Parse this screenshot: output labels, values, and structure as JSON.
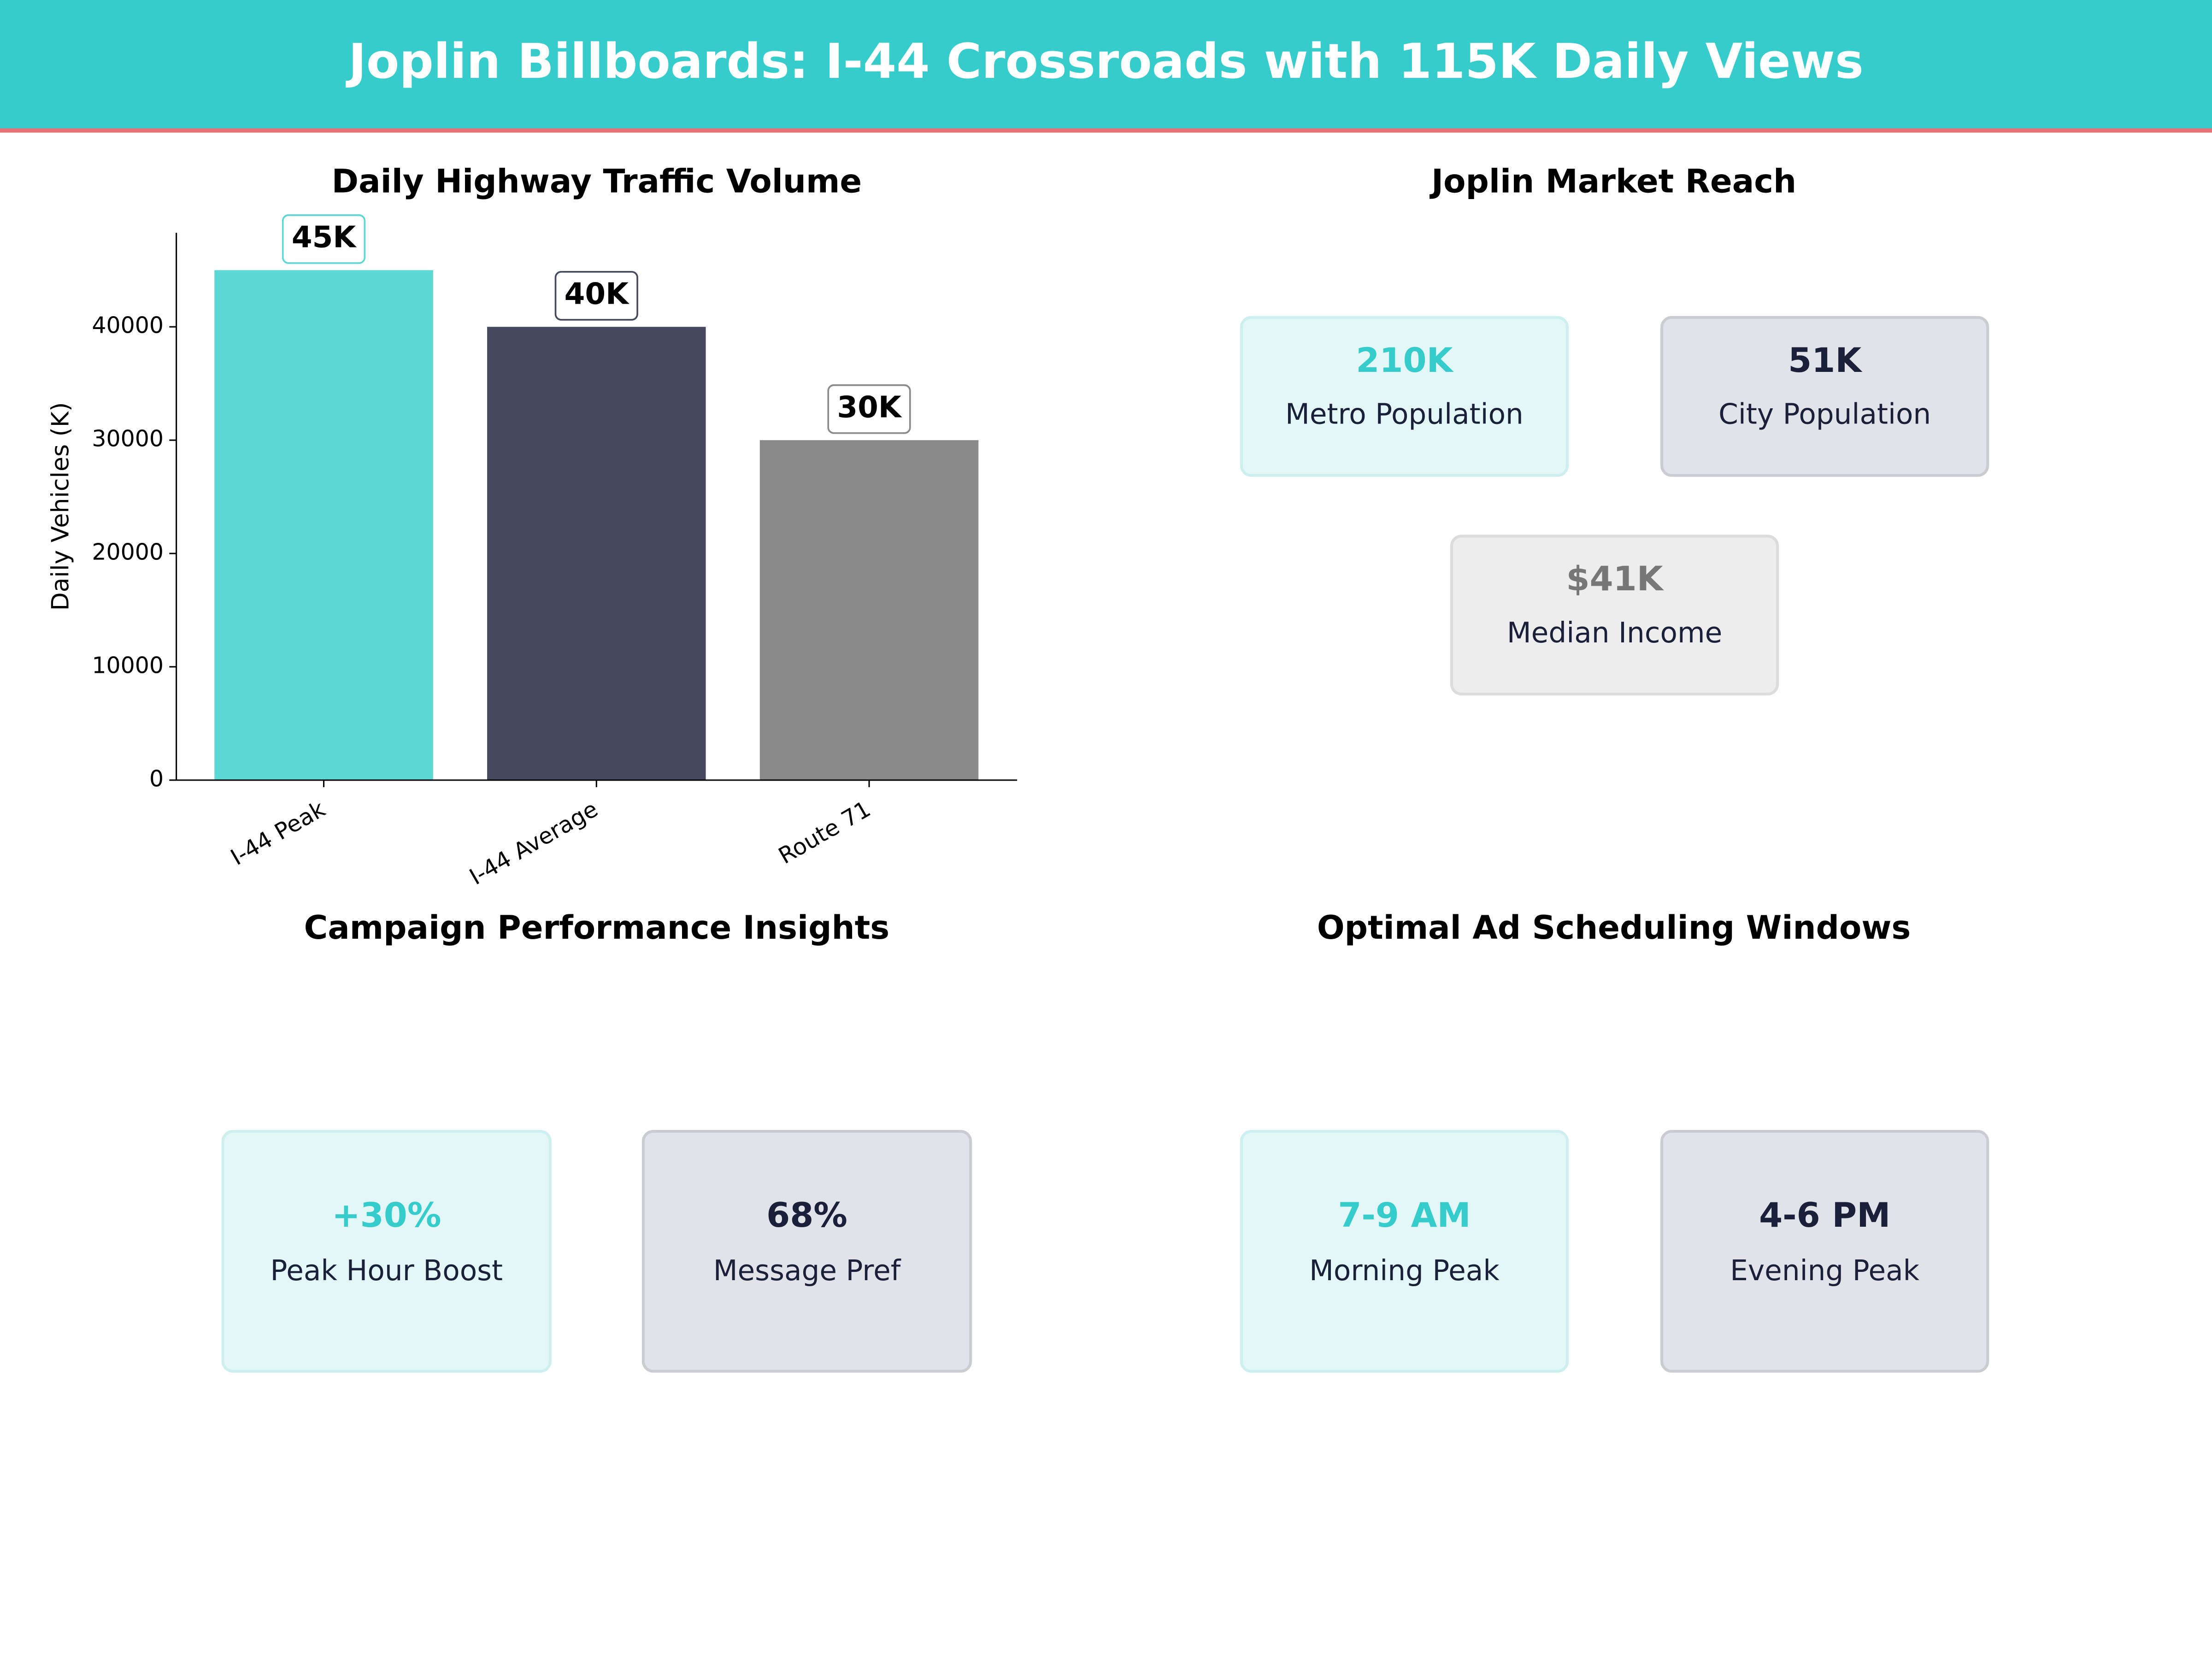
{
  "header": {
    "title": "Joplin Billboards: I-44 Crossroads with 115K Daily Views"
  },
  "chart_data": {
    "type": "bar",
    "title": "Daily Highway Traffic Volume",
    "y_label": "Daily Vehicles (K)",
    "categories": [
      "I-44 Peak",
      "I-44 Average",
      "Route 71"
    ],
    "values": [
      45000,
      40000,
      30000
    ],
    "value_labels": [
      "45K",
      "40K",
      "30K"
    ],
    "colors": [
      "#5dd8d4",
      "#454a5f",
      "#8a8a8a"
    ],
    "ylim": [
      0,
      48300
    ],
    "yticks": [
      0,
      10000,
      20000,
      30000,
      40000
    ]
  },
  "market_reach": {
    "title": "Joplin Market Reach",
    "cards": [
      {
        "value": "210K",
        "label": "Metro Population"
      },
      {
        "value": "51K",
        "label": "City Population"
      },
      {
        "value": "$41K",
        "label": "Median Income"
      }
    ]
  },
  "campaign_insights": {
    "title": "Campaign Performance Insights",
    "cards": [
      {
        "value": "+30%",
        "label": "Peak Hour Boost"
      },
      {
        "value": "68%",
        "label": "Message Pref"
      }
    ]
  },
  "ad_scheduling": {
    "title": "Optimal Ad Scheduling Windows",
    "cards": [
      {
        "value": "7-9 AM",
        "label": "Morning Peak"
      },
      {
        "value": "4-6 PM",
        "label": "Evening Peak"
      }
    ]
  }
}
